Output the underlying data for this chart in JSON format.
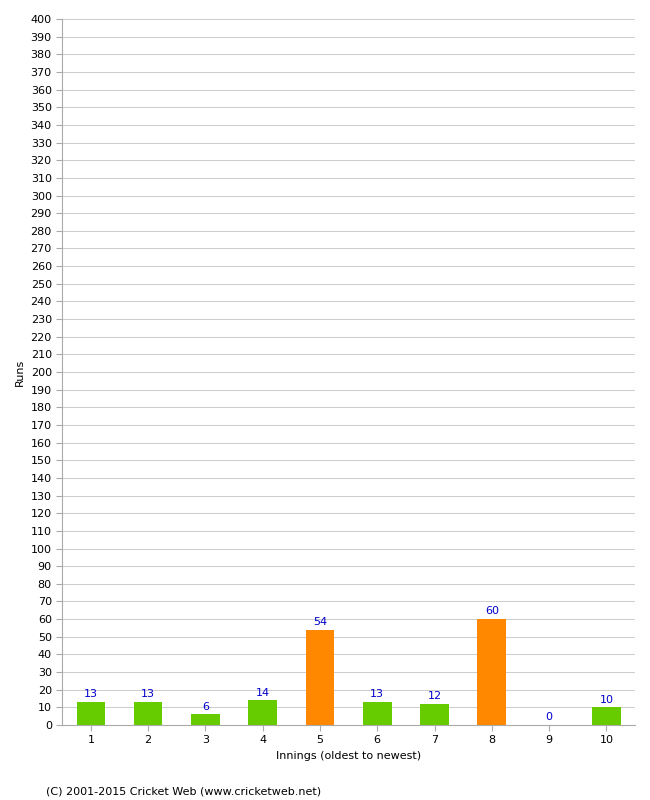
{
  "categories": [
    "1",
    "2",
    "3",
    "4",
    "5",
    "6",
    "7",
    "8",
    "9",
    "10"
  ],
  "values": [
    13,
    13,
    6,
    14,
    54,
    13,
    12,
    60,
    0,
    10
  ],
  "bar_colors": [
    "#66cc00",
    "#66cc00",
    "#66cc00",
    "#66cc00",
    "#ff8800",
    "#66cc00",
    "#66cc00",
    "#ff8800",
    "#66cc00",
    "#66cc00"
  ],
  "xlabel": "Innings (oldest to newest)",
  "ylabel": "Runs",
  "ylim": [
    0,
    400
  ],
  "ytick_step": 10,
  "background_color": "#ffffff",
  "grid_color": "#cccccc",
  "label_color": "#0000cc",
  "label_fontsize": 8,
  "footer": "(C) 2001-2015 Cricket Web (www.cricketweb.net)",
  "footer_fontsize": 8,
  "axis_fontsize": 8,
  "bar_width": 0.5
}
